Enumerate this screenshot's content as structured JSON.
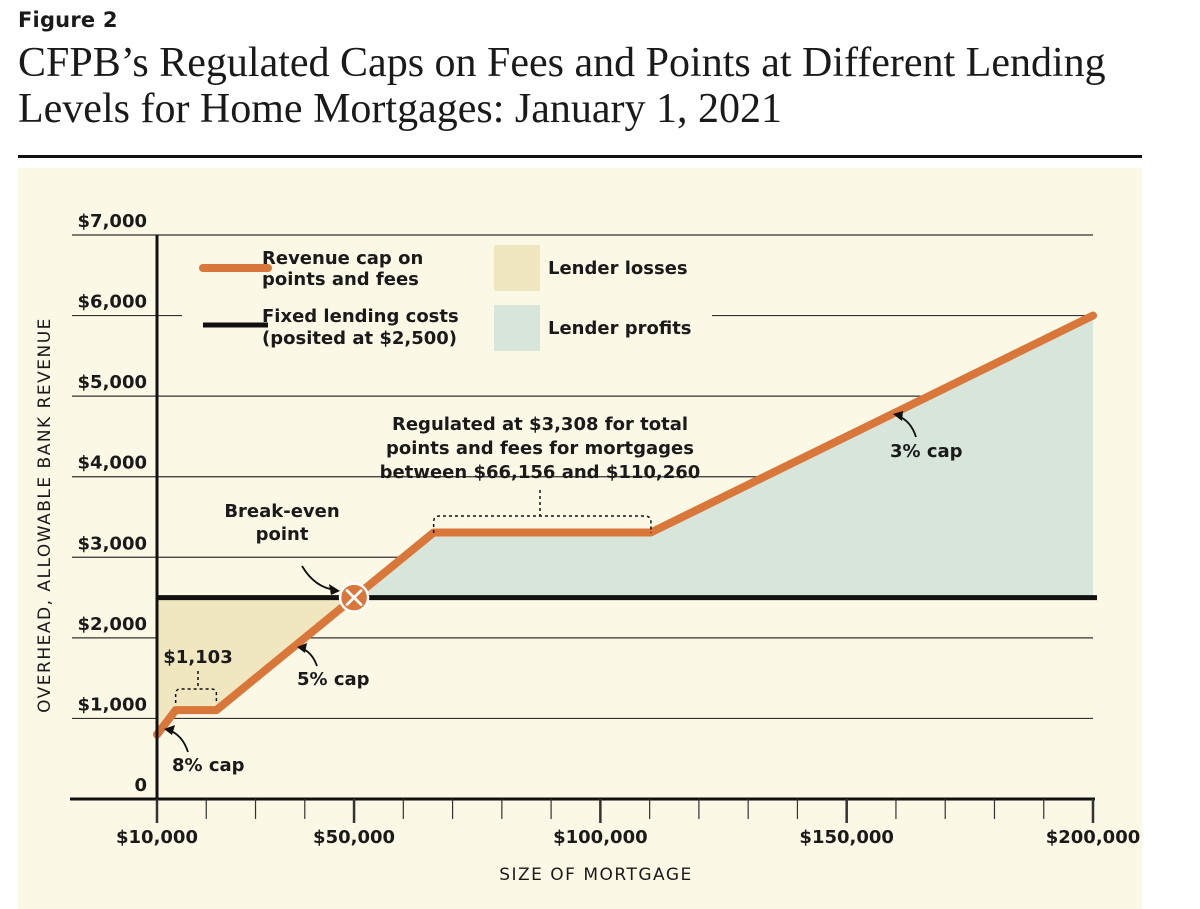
{
  "figure_label": "Figure 2",
  "title": "CFPB’s Regulated Caps on Fees and Points at Different Lending Levels for Home Mortgages: January 1, 2021",
  "colors": {
    "cap_line": "#d9763a",
    "fixed_cost": "#111111",
    "losses": "#f0e6bf",
    "profits": "#d7e5db",
    "panel": "#fcf8e6",
    "gridline": "#333333"
  },
  "legend": {
    "cap_line_label": [
      "Revenue cap on",
      "points and fees"
    ],
    "fixed_cost_label": [
      "Fixed lending costs",
      "(posited at $2,500)"
    ],
    "losses_label": "Lender losses",
    "profits_label": "Lender profits"
  },
  "annotations": {
    "break_even": [
      "Break-even",
      "point"
    ],
    "regulated": [
      "Regulated at $3,308 for total",
      "points and fees for mortgages",
      "between $66,156 and $110,260"
    ],
    "flat_small": "$1,103",
    "cap8": "8% cap",
    "cap5": "5% cap",
    "cap3": "3% cap"
  },
  "chart_data": {
    "type": "line",
    "title": "CFPB’s Regulated Caps on Fees and Points at Different Lending Levels for Home Mortgages: January 1, 2021",
    "xlabel": "SIZE OF MORTGAGE",
    "ylabel": "OVERHEAD, ALLOWABLE BANK REVENUE",
    "xlim": [
      10000,
      200000
    ],
    "ylim": [
      0,
      7000
    ],
    "x_ticks": [
      10000,
      50000,
      100000,
      150000,
      200000
    ],
    "x_tick_labels": [
      "$10,000",
      "$50,000",
      "$100,000",
      "$150,000",
      "$200,000"
    ],
    "y_ticks": [
      0,
      1000,
      2000,
      3000,
      4000,
      5000,
      6000,
      7000
    ],
    "y_tick_labels": [
      "0",
      "$1,000",
      "$2,000",
      "$3,000",
      "$4,000",
      "$5,000",
      "$6,000",
      "$7,000"
    ],
    "grid": "horizontal",
    "series": [
      {
        "name": "Revenue cap on points and fees",
        "x": [
          10000,
          13788,
          22059,
          50000,
          66156,
          110260,
          200000
        ],
        "y": [
          800,
          1103,
          1103,
          2500,
          3308,
          3308,
          6000
        ]
      },
      {
        "name": "Fixed lending costs (posited at $2,500)",
        "x": [
          10000,
          200000
        ],
        "y": [
          2500,
          2500
        ]
      }
    ],
    "break_even": {
      "x": 50000,
      "y": 2500
    }
  }
}
